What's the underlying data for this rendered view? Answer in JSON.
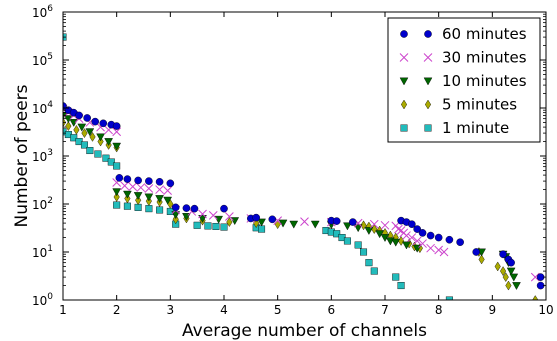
{
  "chart_data": {
    "type": "scatter",
    "xlabel": "Average number of channels",
    "ylabel": "Number of peers",
    "xlim": [
      1,
      10
    ],
    "ylim": [
      1,
      1000000
    ],
    "yscale": "log",
    "x_ticks": [
      1,
      2,
      3,
      4,
      5,
      6,
      7,
      8,
      9,
      10
    ],
    "x_tick_labels": [
      "1",
      "2",
      "3",
      "4",
      "5",
      "6",
      "7",
      "8",
      "9",
      "10"
    ],
    "y_ticks": [
      1,
      10,
      100,
      1000,
      10000,
      100000,
      1000000
    ],
    "y_tick_bases": [
      "10",
      "10",
      "10",
      "10",
      "10",
      "10",
      "10"
    ],
    "y_tick_exponents": [
      "0",
      "1",
      "2",
      "3",
      "4",
      "5",
      "6"
    ],
    "grid": false,
    "legend_position": "top-right",
    "series": [
      {
        "name": "60 minutes",
        "marker": "circle",
        "color": "#0000cc",
        "points": [
          [
            1.0,
            11000
          ],
          [
            1.1,
            9000
          ],
          [
            1.2,
            8000
          ],
          [
            1.3,
            7000
          ],
          [
            1.45,
            6200
          ],
          [
            1.6,
            5200
          ],
          [
            1.75,
            4800
          ],
          [
            1.9,
            4500
          ],
          [
            2.0,
            4200
          ],
          [
            2.05,
            350
          ],
          [
            2.2,
            330
          ],
          [
            2.4,
            310
          ],
          [
            2.6,
            300
          ],
          [
            2.8,
            290
          ],
          [
            3.0,
            270
          ],
          [
            3.1,
            85
          ],
          [
            3.3,
            82
          ],
          [
            3.45,
            80
          ],
          [
            4.0,
            80
          ],
          [
            4.5,
            50
          ],
          [
            4.6,
            52
          ],
          [
            4.9,
            48
          ],
          [
            6.0,
            45
          ],
          [
            6.1,
            44
          ],
          [
            6.4,
            42
          ],
          [
            7.3,
            45
          ],
          [
            7.4,
            42
          ],
          [
            7.5,
            38
          ],
          [
            7.6,
            30
          ],
          [
            7.7,
            25
          ],
          [
            7.85,
            22
          ],
          [
            8.0,
            20
          ],
          [
            8.2,
            18
          ],
          [
            8.4,
            16
          ],
          [
            8.7,
            10
          ],
          [
            9.2,
            9
          ],
          [
            9.3,
            7
          ],
          [
            9.35,
            6
          ],
          [
            9.9,
            3
          ],
          [
            9.9,
            2
          ]
        ]
      },
      {
        "name": "30 minutes",
        "marker": "x",
        "color": "#cc44cc",
        "points": [
          [
            1.0,
            9500
          ],
          [
            1.1,
            8000
          ],
          [
            1.2,
            7000
          ],
          [
            1.3,
            6000
          ],
          [
            1.5,
            5000
          ],
          [
            1.7,
            4000
          ],
          [
            1.85,
            3500
          ],
          [
            2.0,
            3200
          ],
          [
            2.0,
            280
          ],
          [
            2.15,
            240
          ],
          [
            2.3,
            230
          ],
          [
            2.45,
            220
          ],
          [
            2.6,
            210
          ],
          [
            2.8,
            200
          ],
          [
            2.95,
            190
          ],
          [
            3.1,
            75
          ],
          [
            3.4,
            70
          ],
          [
            3.6,
            62
          ],
          [
            3.8,
            58
          ],
          [
            4.1,
            55
          ],
          [
            4.5,
            50
          ],
          [
            5.0,
            45
          ],
          [
            5.5,
            43
          ],
          [
            6.0,
            42
          ],
          [
            6.5,
            40
          ],
          [
            6.8,
            38
          ],
          [
            7.0,
            36
          ],
          [
            7.2,
            35
          ],
          [
            7.25,
            30
          ],
          [
            7.3,
            28
          ],
          [
            7.35,
            25
          ],
          [
            7.4,
            22
          ],
          [
            7.5,
            20
          ],
          [
            7.6,
            17
          ],
          [
            7.7,
            15
          ],
          [
            7.85,
            12
          ],
          [
            8.0,
            11
          ],
          [
            8.1,
            10
          ],
          [
            9.8,
            3
          ]
        ]
      },
      {
        "name": "10 minutes",
        "marker": "triangle-down",
        "color": "#006600",
        "points": [
          [
            1.0,
            7000
          ],
          [
            1.1,
            6000
          ],
          [
            1.2,
            5000
          ],
          [
            1.35,
            4000
          ],
          [
            1.5,
            3200
          ],
          [
            1.7,
            2500
          ],
          [
            1.85,
            2000
          ],
          [
            2.0,
            1600
          ],
          [
            2.0,
            180
          ],
          [
            2.2,
            160
          ],
          [
            2.4,
            150
          ],
          [
            2.6,
            140
          ],
          [
            2.8,
            130
          ],
          [
            2.95,
            120
          ],
          [
            3.1,
            60
          ],
          [
            3.3,
            55
          ],
          [
            3.6,
            50
          ],
          [
            3.9,
            48
          ],
          [
            4.2,
            45
          ],
          [
            4.7,
            42
          ],
          [
            5.1,
            40
          ],
          [
            5.3,
            38
          ],
          [
            5.7,
            38
          ],
          [
            6.0,
            37
          ],
          [
            6.3,
            35
          ],
          [
            6.5,
            32
          ],
          [
            6.7,
            28
          ],
          [
            6.9,
            24
          ],
          [
            7.0,
            20
          ],
          [
            7.1,
            17
          ],
          [
            7.2,
            16
          ],
          [
            7.4,
            14
          ],
          [
            7.6,
            12
          ],
          [
            8.8,
            10
          ],
          [
            9.2,
            9
          ],
          [
            9.25,
            8
          ],
          [
            9.3,
            6
          ],
          [
            9.35,
            4
          ],
          [
            9.4,
            3
          ],
          [
            9.45,
            2
          ]
        ]
      },
      {
        "name": "5 minutes",
        "marker": "diamond",
        "color": "#aaaa00",
        "points": [
          [
            1.0,
            5000
          ],
          [
            1.1,
            4200
          ],
          [
            1.25,
            3500
          ],
          [
            1.4,
            3000
          ],
          [
            1.55,
            2500
          ],
          [
            1.7,
            2000
          ],
          [
            1.85,
            1700
          ],
          [
            2.0,
            1500
          ],
          [
            2.0,
            140
          ],
          [
            2.2,
            130
          ],
          [
            2.4,
            120
          ],
          [
            2.6,
            115
          ],
          [
            2.8,
            110
          ],
          [
            3.0,
            100
          ],
          [
            3.1,
            48
          ],
          [
            3.3,
            50
          ],
          [
            3.6,
            45
          ],
          [
            4.1,
            42
          ],
          [
            4.6,
            40
          ],
          [
            5.0,
            38
          ],
          [
            6.6,
            36
          ],
          [
            6.7,
            34
          ],
          [
            6.8,
            30
          ],
          [
            6.9,
            28
          ],
          [
            7.0,
            25
          ],
          [
            7.1,
            22
          ],
          [
            7.2,
            20
          ],
          [
            7.3,
            17
          ],
          [
            7.45,
            15
          ],
          [
            7.55,
            13
          ],
          [
            7.65,
            12
          ],
          [
            8.75,
            10
          ],
          [
            8.8,
            7
          ],
          [
            9.1,
            5
          ],
          [
            9.2,
            4
          ],
          [
            9.25,
            3
          ],
          [
            9.3,
            2
          ],
          [
            9.8,
            1
          ]
        ]
      },
      {
        "name": "1 minute",
        "marker": "square",
        "color": "#22bbbb",
        "points": [
          [
            1.0,
            300000
          ],
          [
            1.0,
            3200
          ],
          [
            1.1,
            2800
          ],
          [
            1.2,
            2400
          ],
          [
            1.3,
            2000
          ],
          [
            1.4,
            1700
          ],
          [
            1.5,
            1300
          ],
          [
            1.65,
            1100
          ],
          [
            1.8,
            900
          ],
          [
            1.9,
            750
          ],
          [
            2.0,
            620
          ],
          [
            2.0,
            95
          ],
          [
            2.2,
            90
          ],
          [
            2.4,
            85
          ],
          [
            2.6,
            80
          ],
          [
            2.8,
            75
          ],
          [
            3.0,
            70
          ],
          [
            3.1,
            38
          ],
          [
            3.5,
            36
          ],
          [
            3.7,
            35
          ],
          [
            3.85,
            34
          ],
          [
            4.0,
            33
          ],
          [
            4.6,
            32
          ],
          [
            4.7,
            30
          ],
          [
            5.9,
            28
          ],
          [
            6.0,
            26
          ],
          [
            6.1,
            24
          ],
          [
            6.2,
            20
          ],
          [
            6.3,
            17
          ],
          [
            6.5,
            14
          ],
          [
            6.6,
            10
          ],
          [
            6.7,
            6
          ],
          [
            6.8,
            4
          ],
          [
            7.2,
            3
          ],
          [
            7.3,
            2
          ],
          [
            8.2,
            1
          ]
        ]
      }
    ]
  }
}
